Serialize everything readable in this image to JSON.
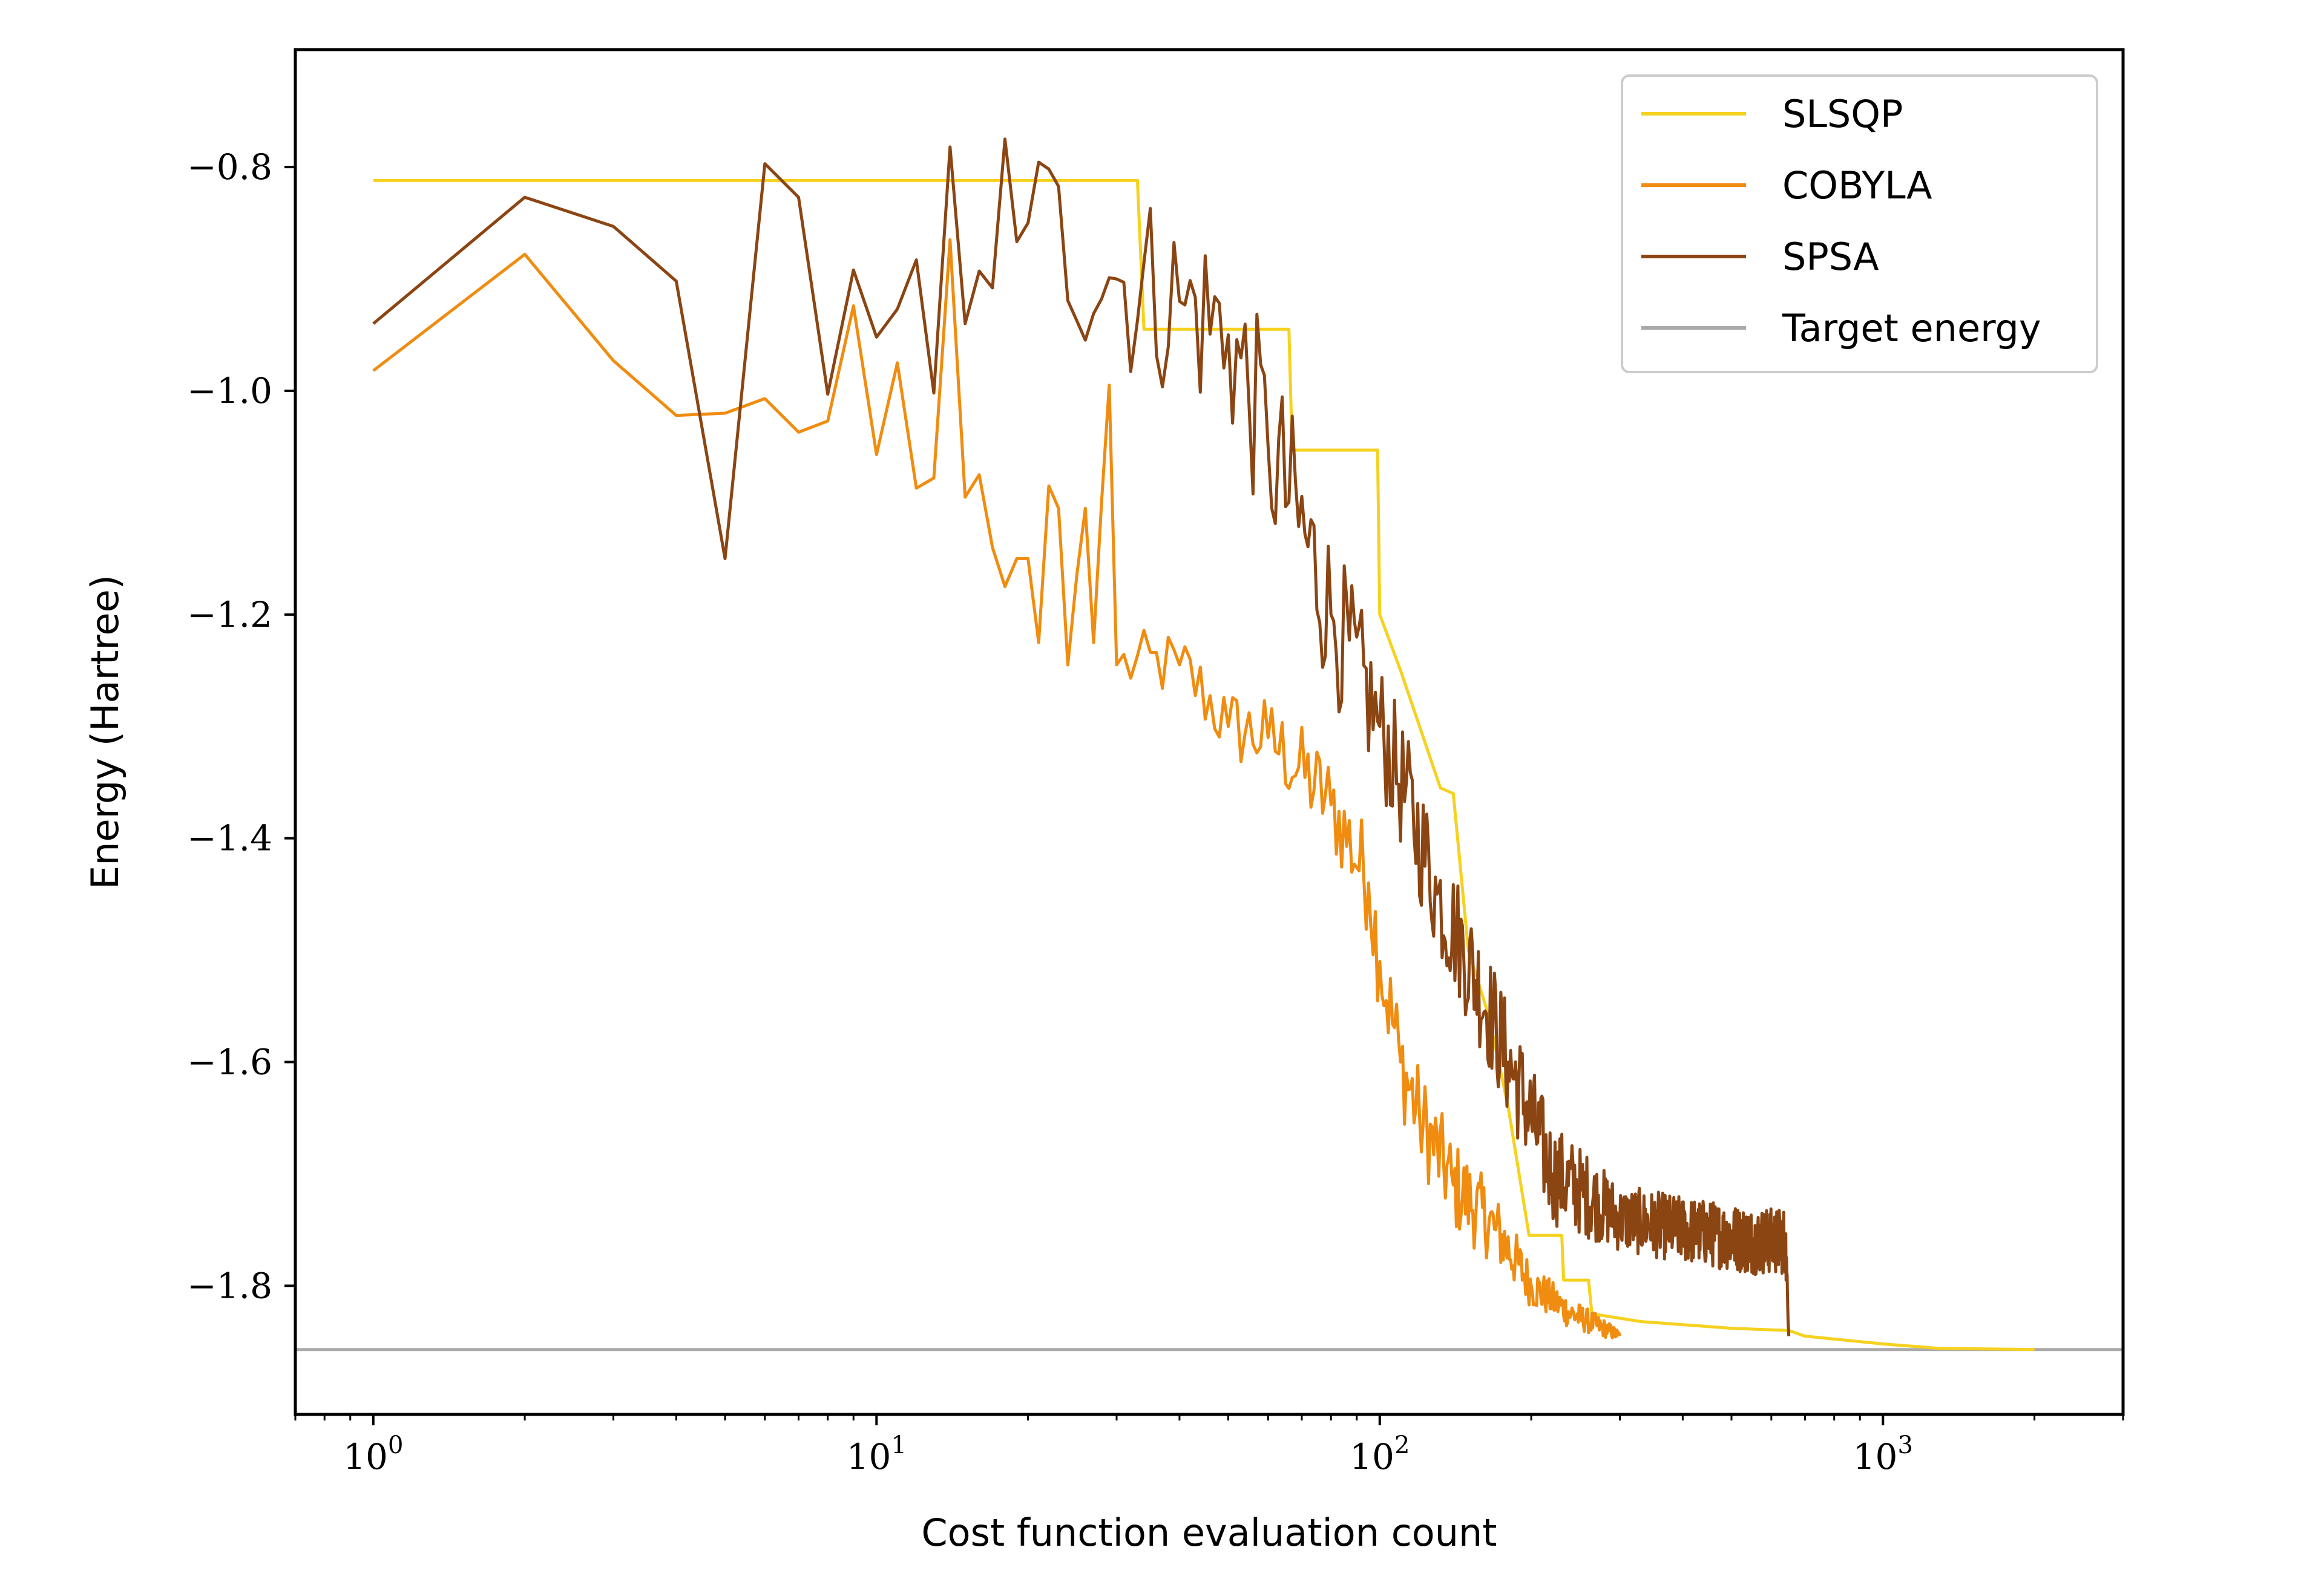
{
  "chart_data": {
    "type": "line",
    "title": "",
    "xlabel": "Cost function evaluation count",
    "ylabel": "Energy (Hartree)",
    "x_scale": "log",
    "xlim": [
      0.7,
      3000
    ],
    "ylim": [
      -1.915,
      -0.695
    ],
    "x_ticks": [
      {
        "value": 1,
        "base": "10",
        "exp": "0"
      },
      {
        "value": 10,
        "base": "10",
        "exp": "1"
      },
      {
        "value": 100,
        "base": "10",
        "exp": "2"
      },
      {
        "value": 1000,
        "base": "10",
        "exp": "3"
      }
    ],
    "y_ticks": [
      {
        "value": -0.8,
        "label": "−0.8"
      },
      {
        "value": -1.0,
        "label": "−1.0"
      },
      {
        "value": -1.2,
        "label": "−1.2"
      },
      {
        "value": -1.4,
        "label": "−1.4"
      },
      {
        "value": -1.6,
        "label": "−1.6"
      },
      {
        "value": -1.8,
        "label": "−1.8"
      }
    ],
    "grid": false,
    "legend_position": "top-right",
    "series": [
      {
        "name": "SLSQP",
        "color": "#f5d21f",
        "kind": "step",
        "points": [
          [
            1,
            -0.812
          ],
          [
            33,
            -0.812
          ],
          [
            34,
            -0.945
          ],
          [
            66,
            -0.945
          ],
          [
            67,
            -1.053
          ],
          [
            99,
            -1.053
          ],
          [
            100,
            -1.2
          ],
          [
            110,
            -1.25
          ],
          [
            120,
            -1.3
          ],
          [
            132,
            -1.355
          ],
          [
            140,
            -1.36
          ],
          [
            150,
            -1.5
          ],
          [
            165,
            -1.56
          ],
          [
            180,
            -1.64
          ],
          [
            198,
            -1.755
          ],
          [
            230,
            -1.755
          ],
          [
            232,
            -1.795
          ],
          [
            260,
            -1.795
          ],
          [
            264,
            -1.825
          ],
          [
            330,
            -1.832
          ],
          [
            500,
            -1.838
          ],
          [
            650,
            -1.84
          ],
          [
            700,
            -1.845
          ],
          [
            1000,
            -1.852
          ],
          [
            1300,
            -1.856
          ],
          [
            2000,
            -1.857
          ]
        ]
      },
      {
        "name": "COBYLA",
        "color": "#f08c10",
        "kind": "noisy",
        "points": [
          [
            1,
            -0.982
          ],
          [
            2,
            -0.878
          ],
          [
            3,
            -0.973
          ],
          [
            4,
            -1.022
          ],
          [
            5,
            -1.02
          ],
          [
            6,
            -1.007
          ],
          [
            7,
            -1.037
          ],
          [
            8,
            -1.027
          ],
          [
            9,
            -0.924
          ],
          [
            10,
            -1.057
          ],
          [
            11,
            -0.975
          ],
          [
            12,
            -1.087
          ],
          [
            13,
            -1.078
          ],
          [
            14,
            -0.865
          ],
          [
            15,
            -1.095
          ],
          [
            16,
            -1.075
          ],
          [
            17,
            -1.14
          ],
          [
            18,
            -1.175
          ],
          [
            19,
            -1.15
          ],
          [
            20,
            -1.15
          ],
          [
            21,
            -1.225
          ],
          [
            22,
            -1.085
          ],
          [
            23,
            -1.105
          ],
          [
            24,
            -1.245
          ],
          [
            25,
            -1.165
          ],
          [
            26,
            -1.105
          ],
          [
            27,
            -1.225
          ],
          [
            28,
            -1.1
          ],
          [
            29,
            -0.995
          ],
          [
            30,
            -1.245
          ],
          [
            40,
            -1.245
          ],
          [
            50,
            -1.3
          ],
          [
            60,
            -1.31
          ],
          [
            80,
            -1.37
          ],
          [
            95,
            -1.44
          ],
          [
            100,
            -1.51
          ],
          [
            110,
            -1.6
          ],
          [
            120,
            -1.65
          ],
          [
            140,
            -1.71
          ],
          [
            170,
            -1.75
          ],
          [
            200,
            -1.8
          ],
          [
            240,
            -1.825
          ],
          [
            300,
            -1.845
          ]
        ],
        "noise_amp": [
          [
            1,
            0.0
          ],
          [
            30,
            0.03
          ],
          [
            100,
            0.05
          ],
          [
            150,
            0.04
          ],
          [
            200,
            0.02
          ],
          [
            300,
            0.005
          ]
        ]
      },
      {
        "name": "SPSA",
        "color": "#8b4513",
        "kind": "noisy",
        "points": [
          [
            1,
            -0.94
          ],
          [
            2,
            -0.827
          ],
          [
            3,
            -0.853
          ],
          [
            4,
            -0.902
          ],
          [
            5,
            -1.15
          ],
          [
            6,
            -0.797
          ],
          [
            7,
            -0.827
          ],
          [
            8,
            -1.003
          ],
          [
            9,
            -0.892
          ],
          [
            10,
            -0.952
          ],
          [
            11,
            -0.927
          ],
          [
            12,
            -0.883
          ],
          [
            13,
            -1.002
          ],
          [
            14,
            -0.782
          ],
          [
            15,
            -0.94
          ],
          [
            16,
            -0.893
          ],
          [
            17,
            -0.908
          ],
          [
            18,
            -0.775
          ],
          [
            20,
            -0.85
          ],
          [
            30,
            -0.9
          ],
          [
            40,
            -0.92
          ],
          [
            50,
            -0.95
          ],
          [
            60,
            -1.05
          ],
          [
            80,
            -1.2
          ],
          [
            100,
            -1.3
          ],
          [
            130,
            -1.45
          ],
          [
            180,
            -1.6
          ],
          [
            220,
            -1.7
          ],
          [
            300,
            -1.74
          ],
          [
            400,
            -1.75
          ],
          [
            550,
            -1.76
          ],
          [
            640,
            -1.76
          ],
          [
            650,
            -1.845
          ]
        ],
        "noise_amp": [
          [
            1,
            0.0
          ],
          [
            18,
            0.09
          ],
          [
            60,
            0.09
          ],
          [
            100,
            0.06
          ],
          [
            200,
            0.05
          ],
          [
            300,
            0.03
          ],
          [
            640,
            0.03
          ],
          [
            650,
            0.0
          ]
        ]
      },
      {
        "name": "Target energy",
        "color": "#aaaaaa",
        "kind": "hline",
        "value": -1.857
      }
    ]
  }
}
